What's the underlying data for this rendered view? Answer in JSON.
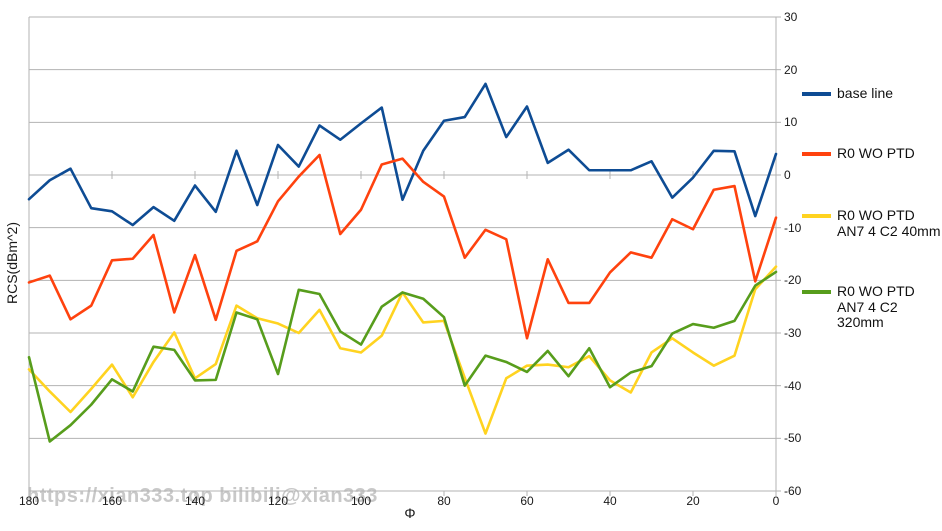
{
  "watermark": "https://xian333.top bilibili@xian333",
  "axes": {
    "y_title": "RCS(dBm^2)",
    "x_title": "Φ",
    "x_ticks": [
      180,
      160,
      140,
      120,
      100,
      80,
      60,
      40,
      20,
      0
    ],
    "y_ticks": [
      30,
      20,
      10,
      0,
      -10,
      -20,
      -30,
      -40,
      -50,
      -60
    ]
  },
  "style": {
    "grid_color": "#b3b3b3",
    "background": "#ffffff"
  },
  "chart_data": {
    "type": "line",
    "title": "",
    "xlabel": "Φ",
    "ylabel": "RCS(dBm^2)",
    "xlim": [
      180,
      0
    ],
    "ylim": [
      -60,
      30
    ],
    "grid": true,
    "legend_position": "right",
    "x": [
      180,
      175,
      170,
      165,
      160,
      155,
      150,
      145,
      140,
      135,
      130,
      125,
      120,
      115,
      110,
      105,
      100,
      95,
      90,
      85,
      80,
      75,
      70,
      65,
      60,
      55,
      50,
      45,
      40,
      35,
      30,
      25,
      20,
      15,
      10,
      5,
      0
    ],
    "series": [
      {
        "name": "base line",
        "color": "#0e4c94",
        "values": [
          -4.6,
          -1.0,
          1.2,
          -6.3,
          -6.9,
          -9.5,
          -6.1,
          -8.7,
          -2.0,
          -7.0,
          4.6,
          -5.7,
          5.7,
          1.6,
          9.4,
          6.7,
          9.8,
          12.8,
          -4.7,
          4.6,
          10.3,
          11.0,
          17.3,
          7.2,
          13.0,
          2.3,
          4.8,
          0.9,
          0.9,
          0.9,
          2.6,
          -4.3,
          -0.5,
          4.6,
          4.5,
          -7.8,
          4.0
        ]
      },
      {
        "name": "R0 WO PTD",
        "color": "#ff420e",
        "values": [
          -20.4,
          -19.1,
          -27.4,
          -24.8,
          -16.2,
          -15.9,
          -11.4,
          -26.1,
          -15.2,
          -27.5,
          -14.4,
          -12.6,
          -5.0,
          -0.3,
          3.8,
          -11.2,
          -6.6,
          2.0,
          3.1,
          -1.3,
          -4.1,
          -15.7,
          -10.4,
          -12.2,
          -31.0,
          -16.0,
          -24.3,
          -24.3,
          -18.5,
          -14.7,
          -15.7,
          -8.4,
          -10.3,
          -2.8,
          -2.1,
          -20.2,
          -8.1
        ]
      },
      {
        "name": "R0 WO PTD AN7 4 C2 40mm",
        "color": "#ffd320",
        "values": [
          -36.9,
          -41.1,
          -45.0,
          -40.6,
          -36.0,
          -42.2,
          -35.5,
          -29.9,
          -38.6,
          -35.9,
          -24.8,
          -27.2,
          -28.2,
          -30.0,
          -25.6,
          -32.9,
          -33.7,
          -30.5,
          -22.3,
          -28.0,
          -27.7,
          -38.5,
          -49.1,
          -38.6,
          -36.2,
          -36.0,
          -36.5,
          -34.4,
          -39.0,
          -41.3,
          -33.7,
          -31.0,
          -33.7,
          -36.2,
          -34.3,
          -21.7,
          -17.4
        ]
      },
      {
        "name": "R0 WO PTD AN7 4 C2 320mm",
        "color": "#579d1c",
        "values": [
          -34.6,
          -50.6,
          -47.5,
          -43.6,
          -38.8,
          -41.1,
          -32.6,
          -33.2,
          -39.0,
          -38.9,
          -26.1,
          -27.4,
          -37.8,
          -21.8,
          -22.6,
          -29.7,
          -32.2,
          -25.0,
          -22.3,
          -23.5,
          -27.0,
          -40.0,
          -34.3,
          -35.5,
          -37.4,
          -33.4,
          -38.2,
          -32.9,
          -40.3,
          -37.5,
          -36.3,
          -30.1,
          -28.3,
          -29.0,
          -27.7,
          -21.0,
          -18.4
        ]
      }
    ]
  }
}
